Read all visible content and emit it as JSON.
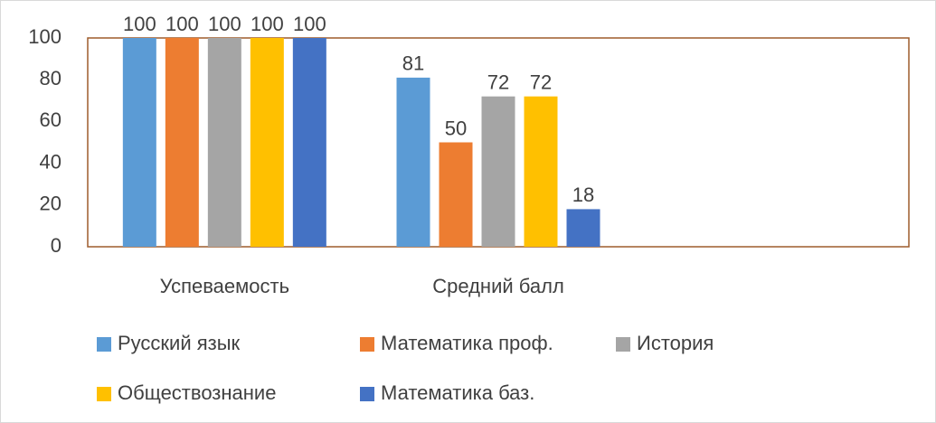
{
  "chart_data": {
    "type": "bar",
    "categories": [
      "Успеваемость",
      "Средний балл",
      null
    ],
    "series": [
      {
        "name": "Русский язык",
        "color": "#5b9bd5",
        "values": [
          100,
          81,
          null
        ]
      },
      {
        "name": "Математика проф.",
        "color": "#ed7d31",
        "values": [
          100,
          50,
          null
        ]
      },
      {
        "name": "История",
        "color": "#a5a5a5",
        "values": [
          100,
          72,
          null
        ]
      },
      {
        "name": "Обществознание",
        "color": "#ffc000",
        "values": [
          100,
          72,
          null
        ]
      },
      {
        "name": "Математика баз.",
        "color": "#4472c4",
        "values": [
          100,
          18,
          null
        ]
      }
    ],
    "ylim": [
      0,
      100
    ],
    "yticks": [
      0,
      20,
      40,
      60,
      80,
      100
    ],
    "grid": false,
    "legend": "bottom"
  }
}
